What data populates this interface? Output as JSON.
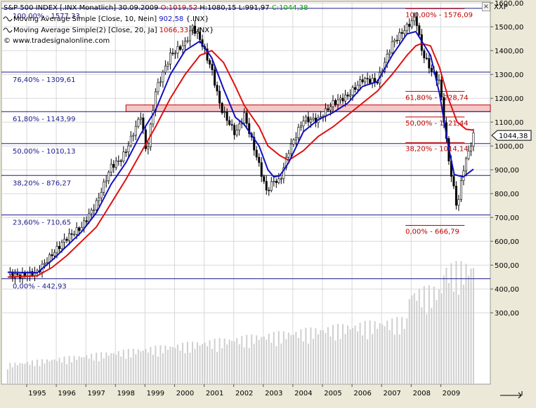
{
  "header": {
    "title": "S&P 500 INDEX [.INX Monatlich] 30.09.2009",
    "ohlc": [
      {
        "text": " O:1019,52",
        "color": "#c00000"
      },
      {
        "text": " H:1080,15",
        "color": "#000000"
      },
      {
        "text": " L:991,97",
        "color": "#000000"
      },
      {
        "text": " C:1044,38",
        "color": "#00a000"
      }
    ],
    "indicators": [
      {
        "icon": "wave-icon",
        "label": "Moving Average Simple [Close, 10, Nein]",
        "value": "902,58",
        "suffix": "{.INX}",
        "color": "#1010c0"
      },
      {
        "icon": "wave-icon",
        "label": "Moving Average Simple(2) [Close, 20, Ja]",
        "value": "1066,33",
        "suffix": "{.INX}",
        "color": "#d00000"
      }
    ],
    "copyright": "© www.tradesignalonline.com"
  },
  "controls": {
    "close_glyph": "×",
    "instrument": "XXP"
  },
  "colors": {
    "ma10": "#1010c0",
    "ma20": "#e01010",
    "fib_big": "#1a1a8c",
    "fib_small": "#c00000",
    "candle": "#000000",
    "volume": "#cfcfcf"
  },
  "chart_data": {
    "type": "candlestick",
    "x_ticks": [
      "1995",
      "1996",
      "1997",
      "1998",
      "1999",
      "2000",
      "2001",
      "2002",
      "2003",
      "2004",
      "2005",
      "2006",
      "2007",
      "2008",
      "2009"
    ],
    "y_ticks": [
      "300,00",
      "400,00",
      "500,00",
      "600,00",
      "700,00",
      "800,00",
      "900,00",
      "1000,00",
      "1100,00",
      "1200,00",
      "1300,00",
      "1400,00",
      "1500,00",
      "1600,00",
      "1700,00"
    ],
    "ylim": [
      200,
      1750
    ],
    "last_price_label": "1044,38",
    "resistance_zone": [
      1143.99,
      1172
    ],
    "fib_major": [
      {
        "label": "100,00% - 1577,33",
        "value": 1577.33
      },
      {
        "label": "76,40% - 1309,61",
        "value": 1309.61
      },
      {
        "label": "61,80% - 1143,99",
        "value": 1143.99
      },
      {
        "label": "50,00% - 1010,13",
        "value": 1010.13
      },
      {
        "label": "38,20% - 876,27",
        "value": 876.27
      },
      {
        "label": "23,60% - 710,65",
        "value": 710.65
      },
      {
        "label": "0,00% - 442,93",
        "value": 442.93
      }
    ],
    "fib_minor": [
      {
        "label": "100,00% - 1576,09",
        "value": 1576.09
      },
      {
        "label": "61,80% - 1228,74",
        "value": 1228.74
      },
      {
        "label": "50,00% - 1121,44",
        "value": 1121.44
      },
      {
        "label": "38,20% - 1014,14",
        "value": 1014.14
      },
      {
        "label": "0,00% - 666,79",
        "value": 666.79
      }
    ],
    "series_close": [
      [
        1994.0,
        460
      ],
      [
        1994.5,
        455
      ],
      [
        1995.0,
        470
      ],
      [
        1995.5,
        545
      ],
      [
        1996.0,
        615
      ],
      [
        1996.5,
        660
      ],
      [
        1997.0,
        760
      ],
      [
        1997.5,
        915
      ],
      [
        1997.8,
        940
      ],
      [
        1998.0,
        980
      ],
      [
        1998.5,
        1130
      ],
      [
        1998.7,
        960
      ],
      [
        1999.0,
        1230
      ],
      [
        1999.5,
        1380
      ],
      [
        2000.0,
        1430
      ],
      [
        2000.25,
        1500
      ],
      [
        2000.5,
        1450
      ],
      [
        2000.9,
        1320
      ],
      [
        2001.2,
        1160
      ],
      [
        2001.7,
        1050
      ],
      [
        2002.0,
        1130
      ],
      [
        2002.5,
        920
      ],
      [
        2002.75,
        810
      ],
      [
        2003.0,
        855
      ],
      [
        2003.2,
        850
      ],
      [
        2003.5,
        980
      ],
      [
        2004.0,
        1110
      ],
      [
        2004.5,
        1110
      ],
      [
        2005.0,
        1180
      ],
      [
        2005.5,
        1210
      ],
      [
        2006.0,
        1280
      ],
      [
        2006.5,
        1270
      ],
      [
        2007.0,
        1430
      ],
      [
        2007.5,
        1500
      ],
      [
        2007.8,
        1540
      ],
      [
        2008.0,
        1400
      ],
      [
        2008.3,
        1320
      ],
      [
        2008.6,
        1270
      ],
      [
        2008.9,
        950
      ],
      [
        2009.0,
        880
      ],
      [
        2009.2,
        735
      ],
      [
        2009.4,
        900
      ],
      [
        2009.75,
        1044
      ]
    ],
    "ma10": [
      [
        1994.0,
        470
      ],
      [
        1995.0,
        468
      ],
      [
        1995.5,
        520
      ],
      [
        1996.0,
        580
      ],
      [
        1996.5,
        640
      ],
      [
        1997.0,
        720
      ],
      [
        1997.5,
        840
      ],
      [
        1998.0,
        930
      ],
      [
        1998.5,
        1050
      ],
      [
        1999.0,
        1150
      ],
      [
        1999.5,
        1300
      ],
      [
        2000.0,
        1400
      ],
      [
        2000.5,
        1440
      ],
      [
        2000.9,
        1370
      ],
      [
        2001.3,
        1240
      ],
      [
        2001.7,
        1120
      ],
      [
        2002.0,
        1090
      ],
      [
        2002.5,
        1000
      ],
      [
        2002.8,
        900
      ],
      [
        2003.0,
        870
      ],
      [
        2003.2,
        875
      ],
      [
        2003.5,
        930
      ],
      [
        2004.0,
        1060
      ],
      [
        2004.5,
        1110
      ],
      [
        2005.0,
        1140
      ],
      [
        2005.5,
        1180
      ],
      [
        2006.0,
        1250
      ],
      [
        2006.5,
        1270
      ],
      [
        2007.0,
        1380
      ],
      [
        2007.5,
        1470
      ],
      [
        2007.8,
        1480
      ],
      [
        2008.0,
        1440
      ],
      [
        2008.3,
        1380
      ],
      [
        2008.6,
        1220
      ],
      [
        2008.9,
        1000
      ],
      [
        2009.1,
        880
      ],
      [
        2009.4,
        870
      ],
      [
        2009.75,
        902.58
      ]
    ],
    "ma20": [
      [
        1994.0,
        450
      ],
      [
        1995.0,
        455
      ],
      [
        1995.5,
        490
      ],
      [
        1996.0,
        540
      ],
      [
        1996.5,
        600
      ],
      [
        1997.0,
        660
      ],
      [
        1997.5,
        760
      ],
      [
        1998.0,
        860
      ],
      [
        1998.5,
        970
      ],
      [
        1999.0,
        1080
      ],
      [
        1999.5,
        1200
      ],
      [
        2000.0,
        1300
      ],
      [
        2000.5,
        1380
      ],
      [
        2000.9,
        1400
      ],
      [
        2001.3,
        1350
      ],
      [
        2001.7,
        1250
      ],
      [
        2002.0,
        1170
      ],
      [
        2002.5,
        1080
      ],
      [
        2002.8,
        1000
      ],
      [
        2003.2,
        960
      ],
      [
        2003.5,
        940
      ],
      [
        2004.0,
        980
      ],
      [
        2004.5,
        1040
      ],
      [
        2005.0,
        1080
      ],
      [
        2005.5,
        1130
      ],
      [
        2006.0,
        1180
      ],
      [
        2006.5,
        1230
      ],
      [
        2007.0,
        1300
      ],
      [
        2007.5,
        1380
      ],
      [
        2007.8,
        1420
      ],
      [
        2008.0,
        1430
      ],
      [
        2008.3,
        1420
      ],
      [
        2008.6,
        1330
      ],
      [
        2008.9,
        1200
      ],
      [
        2009.2,
        1100
      ],
      [
        2009.5,
        1070
      ],
      [
        2009.75,
        1066.33
      ]
    ]
  }
}
